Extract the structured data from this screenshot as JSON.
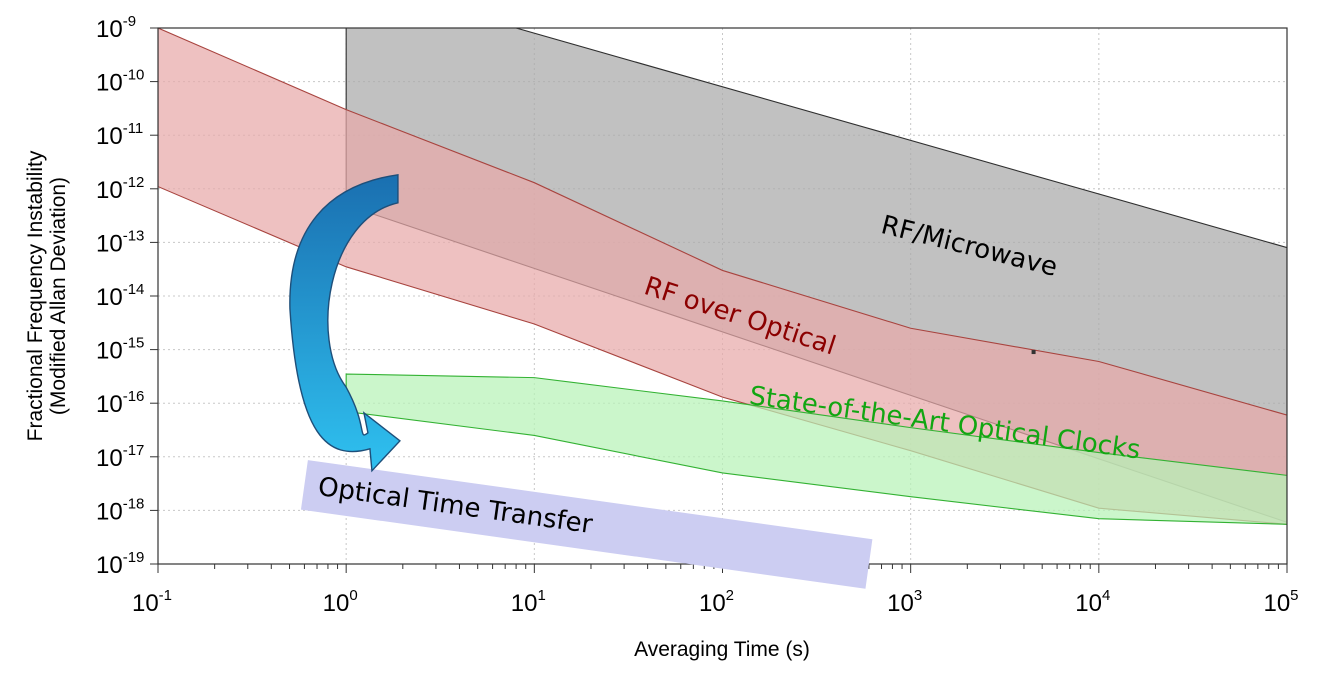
{
  "chart_data": {
    "type": "area",
    "title": "",
    "xlabel": "Averaging Time (s)",
    "ylabel_line1": "Fractional Frequency Instability",
    "ylabel_line2": "(Modified Allan Deviation)",
    "xscale": "log",
    "yscale": "log",
    "xlim": [
      0.1,
      100000
    ],
    "ylim": [
      1e-19,
      1e-09
    ],
    "grid": true,
    "x_ticks": [
      {
        "base": "10",
        "exp": "-1",
        "value": 0.1
      },
      {
        "base": "10",
        "exp": "0",
        "value": 1
      },
      {
        "base": "10",
        "exp": "1",
        "value": 10
      },
      {
        "base": "10",
        "exp": "2",
        "value": 100
      },
      {
        "base": "10",
        "exp": "3",
        "value": 1000
      },
      {
        "base": "10",
        "exp": "4",
        "value": 10000
      },
      {
        "base": "10",
        "exp": "5",
        "value": 100000
      }
    ],
    "y_ticks": [
      {
        "base": "10",
        "exp": "-9",
        "value": 1e-09
      },
      {
        "base": "10",
        "exp": "-10",
        "value": 1e-10
      },
      {
        "base": "10",
        "exp": "-11",
        "value": 1e-11
      },
      {
        "base": "10",
        "exp": "-12",
        "value": 1e-12
      },
      {
        "base": "10",
        "exp": "-13",
        "value": 1e-13
      },
      {
        "base": "10",
        "exp": "-14",
        "value": 1e-14
      },
      {
        "base": "10",
        "exp": "-15",
        "value": 1e-15
      },
      {
        "base": "10",
        "exp": "-16",
        "value": 1e-16
      },
      {
        "base": "10",
        "exp": "-17",
        "value": 1e-17
      },
      {
        "base": "10",
        "exp": "-18",
        "value": 1e-18
      },
      {
        "base": "10",
        "exp": "-19",
        "value": 1e-19
      }
    ],
    "series": [
      {
        "name": "RF/Microwave",
        "fill": "#a9a9a9",
        "edge": "#2f2f2f",
        "label_color": "#000000",
        "label_at": {
          "x": 2000,
          "y": 6e-14,
          "angle_deg": 14
        },
        "upper": [
          [
            1,
            1e-09
          ],
          [
            8,
            1e-09
          ],
          [
            100000,
            8e-14
          ]
        ],
        "lower": [
          [
            1,
            5e-13
          ],
          [
            100000,
            6e-19
          ]
        ]
      },
      {
        "name": "RF over Optical",
        "fill": "#e7a9a9",
        "edge": "#a8443f",
        "label_color": "#8b0000",
        "label_at": {
          "x": 120,
          "y": 3e-15,
          "angle_deg": 18
        },
        "upper": [
          [
            0.1,
            1e-09
          ],
          [
            1,
            3e-11
          ],
          [
            10,
            1.3e-12
          ],
          [
            100,
            3e-14
          ],
          [
            1000,
            2.5e-15
          ],
          [
            10000,
            6e-16
          ],
          [
            100000,
            6e-17
          ]
        ],
        "lower": [
          [
            0.1,
            1.1e-12
          ],
          [
            1,
            3.5e-14
          ],
          [
            10,
            3e-15
          ],
          [
            100,
            1.3e-16
          ],
          [
            1000,
            1.3e-17
          ],
          [
            10000,
            1.1e-18
          ],
          [
            100000,
            5.5e-19
          ]
        ]
      },
      {
        "name": "State-of-the-Art Optical Clocks",
        "fill": "#b7f2b7",
        "edge": "#33b233",
        "label_color": "#12a612",
        "label_at": {
          "x": 1500,
          "y": 3e-17,
          "angle_deg": 8
        },
        "upper": [
          [
            1,
            3.5e-16
          ],
          [
            10,
            3e-16
          ],
          [
            100,
            1.1e-16
          ],
          [
            1000,
            3.5e-17
          ],
          [
            10000,
            1.2e-17
          ],
          [
            100000,
            4.5e-18
          ]
        ],
        "lower": [
          [
            1,
            7e-17
          ],
          [
            10,
            2.5e-17
          ],
          [
            100,
            5e-18
          ],
          [
            1000,
            1.8e-18
          ],
          [
            10000,
            7e-19
          ],
          [
            100000,
            5.5e-19
          ]
        ]
      }
    ],
    "annotations": [
      {
        "text": "Optical Time Transfer",
        "fill": "#cccdf2",
        "text_color": "#000000",
        "from": [
          0.6,
          3e-18
        ],
        "to": [
          600,
          1e-19
        ]
      }
    ],
    "arrow": {
      "fill_top": "#1a6fb0",
      "fill_bottom": "#2fc1f0",
      "edge": "#1e4f7a",
      "from": [
        0.8,
        1e-12
      ],
      "to": [
        0.8,
        1e-17
      ]
    },
    "marker_point": {
      "x": 4500,
      "y": 9e-16
    }
  }
}
